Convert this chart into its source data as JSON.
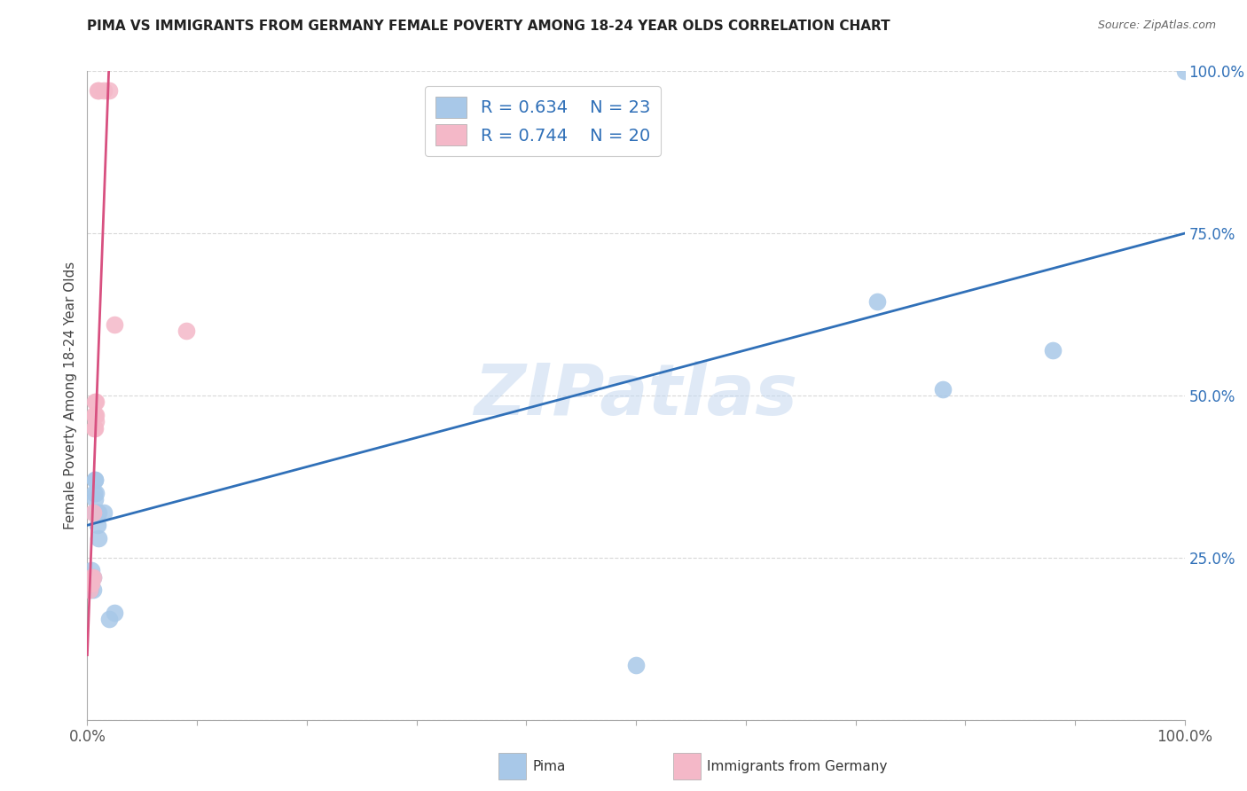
{
  "title": "PIMA VS IMMIGRANTS FROM GERMANY FEMALE POVERTY AMONG 18-24 YEAR OLDS CORRELATION CHART",
  "source": "Source: ZipAtlas.com",
  "ylabel": "Female Poverty Among 18-24 Year Olds",
  "blue_label": "Pima",
  "pink_label": "Immigrants from Germany",
  "blue_R": 0.634,
  "blue_N": 23,
  "pink_R": 0.744,
  "pink_N": 20,
  "blue_color": "#a8c8e8",
  "pink_color": "#f4b8c8",
  "blue_line_color": "#3070b8",
  "pink_line_color": "#d85080",
  "legend_text_color": "#3070b8",
  "ytick_color": "#3070b8",
  "xtick_color": "#555555",
  "blue_x": [
    0.003,
    0.004,
    0.005,
    0.005,
    0.006,
    0.006,
    0.007,
    0.007,
    0.007,
    0.008,
    0.008,
    0.009,
    0.009,
    0.01,
    0.01,
    0.015,
    0.02,
    0.025,
    0.5,
    0.72,
    0.78,
    0.88,
    1.0
  ],
  "blue_y": [
    0.2,
    0.23,
    0.2,
    0.22,
    0.32,
    0.35,
    0.34,
    0.37,
    0.37,
    0.32,
    0.35,
    0.32,
    0.3,
    0.32,
    0.28,
    0.32,
    0.155,
    0.165,
    0.085,
    0.645,
    0.51,
    0.57,
    1.0
  ],
  "pink_x": [
    0.002,
    0.003,
    0.004,
    0.004,
    0.005,
    0.005,
    0.006,
    0.006,
    0.007,
    0.007,
    0.007,
    0.008,
    0.008,
    0.008,
    0.009,
    0.01,
    0.015,
    0.02,
    0.025,
    0.09
  ],
  "pink_y": [
    0.2,
    0.21,
    0.21,
    0.22,
    0.22,
    0.32,
    0.45,
    0.47,
    0.45,
    0.47,
    0.49,
    0.46,
    0.47,
    0.49,
    0.97,
    0.97,
    0.97,
    0.97,
    0.61,
    0.6
  ],
  "blue_line_x0": 0.0,
  "blue_line_x1": 1.0,
  "blue_line_y0": 0.3,
  "blue_line_y1": 0.75,
  "pink_line_x0": 0.0,
  "pink_line_x1": 0.02,
  "pink_line_y0": 0.1,
  "pink_line_y1": 1.02,
  "watermark": "ZIPatlas",
  "background_color": "#ffffff",
  "grid_color": "#d8d8d8",
  "xlim": [
    0.0,
    1.0
  ],
  "ylim": [
    0.0,
    1.0
  ],
  "xticks": [
    0.0,
    0.1,
    0.2,
    0.3,
    0.4,
    0.5,
    0.6,
    0.7,
    0.8,
    0.9,
    1.0
  ],
  "yticks": [
    0.0,
    0.25,
    0.5,
    0.75,
    1.0
  ]
}
